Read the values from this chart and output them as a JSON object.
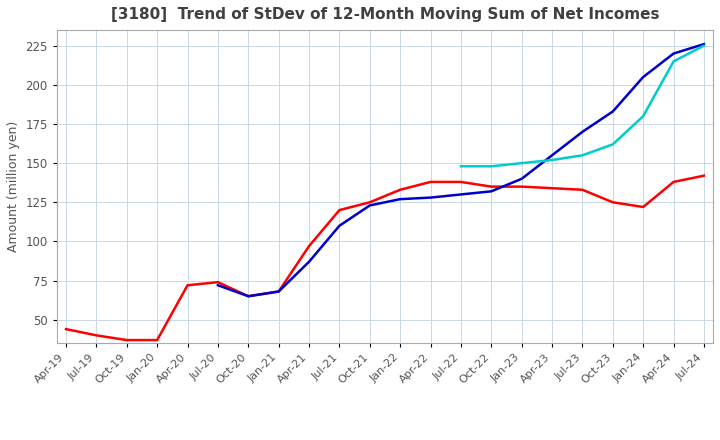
{
  "title": "[3180]  Trend of StDev of 12-Month Moving Sum of Net Incomes",
  "ylabel": "Amount (million yen)",
  "ylim": [
    35,
    235
  ],
  "yticks": [
    50,
    75,
    100,
    125,
    150,
    175,
    200,
    225
  ],
  "line_colors": {
    "3 Years": "#ff0000",
    "5 Years": "#0000cc",
    "7 Years": "#00cccc",
    "10 Years": "#006600"
  },
  "x_labels": [
    "Apr-19",
    "Jul-19",
    "Oct-19",
    "Jan-20",
    "Apr-20",
    "Jul-20",
    "Oct-20",
    "Jan-21",
    "Apr-21",
    "Jul-21",
    "Oct-21",
    "Jan-22",
    "Apr-22",
    "Jul-22",
    "Oct-22",
    "Jan-23",
    "Apr-23",
    "Jul-23",
    "Oct-23",
    "Jan-24",
    "Apr-24",
    "Jul-24"
  ],
  "series_3yr": [
    44,
    40,
    37,
    37,
    72,
    74,
    65,
    68,
    97,
    120,
    125,
    133,
    138,
    138,
    135,
    135,
    134,
    133,
    125,
    122,
    138,
    142
  ],
  "series_5yr": [
    null,
    null,
    null,
    null,
    null,
    72,
    65,
    68,
    87,
    110,
    123,
    127,
    128,
    130,
    132,
    140,
    155,
    170,
    183,
    205,
    220,
    226
  ],
  "series_7yr": [
    null,
    null,
    null,
    null,
    null,
    null,
    null,
    null,
    null,
    null,
    null,
    null,
    null,
    148,
    148,
    150,
    152,
    155,
    162,
    180,
    215,
    225
  ],
  "series_10yr": [
    null,
    null,
    null,
    null,
    null,
    null,
    null,
    null,
    null,
    null,
    null,
    null,
    null,
    null,
    null,
    null,
    null,
    null,
    null,
    null,
    null,
    null
  ],
  "background_color": "#ffffff",
  "grid_color": "#c8d8e8",
  "title_color": "#404040",
  "label_color": "#555555",
  "title_fontsize": 11,
  "tick_fontsize": 8,
  "ylabel_fontsize": 9
}
